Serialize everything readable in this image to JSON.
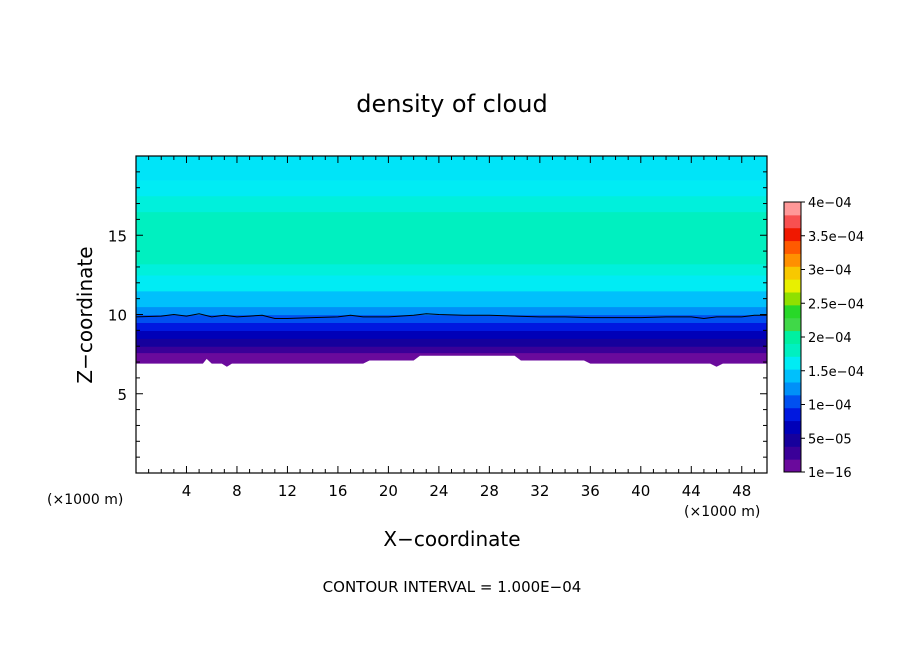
{
  "chart_data": {
    "type": "heatmap",
    "title": "density of cloud",
    "xlabel": "X−coordinate",
    "ylabel": "Z−coordinate",
    "x_unit_label": "(×1000 m)",
    "z_unit_label": "(×1000 m)",
    "footer": "CONTOUR INTERVAL = 1.000E−04",
    "xlim": [
      0,
      50
    ],
    "ylim": [
      0,
      20
    ],
    "x_ticks": [
      4,
      8,
      12,
      16,
      20,
      24,
      28,
      32,
      36,
      40,
      44,
      48
    ],
    "x_tick_labels": [
      "4",
      "8",
      "12",
      "16",
      "20",
      "24",
      "28",
      "32",
      "36",
      "40",
      "44",
      "48"
    ],
    "y_ticks": [
      5,
      10,
      15
    ],
    "y_tick_labels": [
      "5",
      "10",
      "15"
    ],
    "colorbar": {
      "min": 1e-16,
      "max": 0.0004,
      "labels": [
        "1e−16",
        "5e−05",
        "1e−04",
        "1.5e−04",
        "2e−04",
        "2.5e−04",
        "3e−04",
        "3.5e−04",
        "4e−04"
      ],
      "colors": [
        "#6a0a9c",
        "#3a0098",
        "#16009c",
        "#0000b8",
        "#0018e0",
        "#0050f0",
        "#0090f8",
        "#00c0fc",
        "#00ecf4",
        "#00f0c0",
        "#00f0a0",
        "#40d848",
        "#28d828",
        "#90e000",
        "#e8f000",
        "#f8c800",
        "#ff9000",
        "#ff5a00",
        "#f01800",
        "#f85050",
        "#ff9898"
      ]
    },
    "cloud_base_x": [
      0,
      4,
      5.3,
      5.6,
      6,
      6.8,
      7.2,
      7.6,
      8,
      18,
      18.5,
      22,
      22.5,
      30,
      30.5,
      35.5,
      36,
      45.5,
      46,
      46.5,
      50
    ],
    "cloud_base_z": [
      6.9,
      6.9,
      6.9,
      7.2,
      6.9,
      6.9,
      6.7,
      6.9,
      6.9,
      6.9,
      7.1,
      7.1,
      7.4,
      7.4,
      7.1,
      7.1,
      6.9,
      6.9,
      6.7,
      6.9,
      6.9
    ],
    "contour_1e4_x": [
      0,
      2,
      3,
      4,
      5,
      6,
      7,
      8,
      9,
      10,
      11,
      12,
      14,
      16,
      17,
      18,
      20,
      22,
      23,
      24,
      26,
      28,
      30,
      32,
      34,
      36,
      38,
      40,
      42,
      44,
      45,
      46,
      48,
      49,
      50
    ],
    "contour_1e4_z": [
      9.85,
      9.9,
      10.0,
      9.9,
      10.05,
      9.85,
      9.95,
      9.85,
      9.9,
      9.95,
      9.75,
      9.75,
      9.8,
      9.85,
      9.95,
      9.85,
      9.85,
      9.95,
      10.05,
      10.0,
      9.95,
      9.95,
      9.9,
      9.85,
      9.85,
      9.8,
      9.8,
      9.8,
      9.85,
      9.85,
      9.75,
      9.85,
      9.85,
      9.95,
      9.95
    ],
    "vertical_profile": [
      {
        "z_bottom": 6.9,
        "z_top": 7.6,
        "color": "#6a0a9c"
      },
      {
        "z_bottom": 7.6,
        "z_top": 8.0,
        "color": "#3a0098"
      },
      {
        "z_bottom": 8.0,
        "z_top": 8.5,
        "color": "#16009c"
      },
      {
        "z_bottom": 8.5,
        "z_top": 9.0,
        "color": "#0000b8"
      },
      {
        "z_bottom": 9.0,
        "z_top": 9.5,
        "color": "#0018e0"
      },
      {
        "z_bottom": 9.5,
        "z_top": 10.0,
        "color": "#0050f0"
      },
      {
        "z_bottom": 10.0,
        "z_top": 10.5,
        "color": "#0090f8"
      },
      {
        "z_bottom": 10.5,
        "z_top": 11.5,
        "color": "#00c0fc"
      },
      {
        "z_bottom": 11.5,
        "z_top": 12.5,
        "color": "#00ecf4"
      },
      {
        "z_bottom": 12.5,
        "z_top": 13.2,
        "color": "#00f0dc"
      },
      {
        "z_bottom": 13.2,
        "z_top": 16.5,
        "color": "#00f0c0"
      },
      {
        "z_bottom": 16.5,
        "z_top": 17.5,
        "color": "#00f0dc"
      },
      {
        "z_bottom": 17.5,
        "z_top": 18.5,
        "color": "#00ecf4"
      },
      {
        "z_bottom": 18.5,
        "z_top": 20.0,
        "color": "#00e4f8"
      }
    ]
  }
}
